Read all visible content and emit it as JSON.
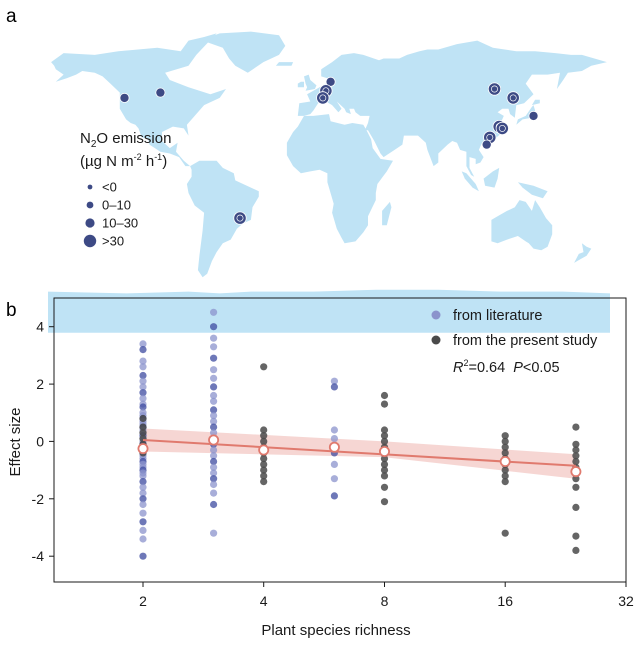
{
  "colors": {
    "ocean": "#ffffff",
    "land": "#bfe3f5",
    "site": "#3d4a85",
    "site_stroke": "#ffffff",
    "literature": "#8b93cc",
    "literature_dark": "#3d4ba0",
    "present_study": "#4a4a4a",
    "fit_line": "#e07a6e",
    "ci_band": "#f4cfcb",
    "mean_marker": "#e07a6e"
  },
  "panel_a": {
    "letter": "a",
    "legend": {
      "title_prefix": "N",
      "title_sub": "2",
      "title_rest": "O emission",
      "unit_prefix": "(µg N m",
      "unit_exp1": "-2",
      "unit_mid": " h",
      "unit_exp2": "-1",
      "unit_suffix": ")",
      "items": [
        {
          "label": "<0",
          "size_rank": 1
        },
        {
          "label": "0–10",
          "size_rank": 2
        },
        {
          "label": "10–30",
          "size_rank": 3
        },
        {
          "label": ">30",
          "size_rank": 4
        }
      ]
    },
    "sites": [
      {
        "name": "north-america-west",
        "lon": -121,
        "lat": 46,
        "size_rank": 3
      },
      {
        "name": "north-america-central",
        "lon": -98,
        "lat": 49,
        "size_rank": 3
      },
      {
        "name": "south-america-brazil",
        "lon": -47,
        "lat": -21,
        "size_rank": 4
      },
      {
        "name": "europe-north",
        "lon": 11,
        "lat": 55,
        "size_rank": 3
      },
      {
        "name": "europe-central-1",
        "lon": 8,
        "lat": 50,
        "size_rank": 4
      },
      {
        "name": "europe-central-2",
        "lon": 6,
        "lat": 46,
        "size_rank": 4
      },
      {
        "name": "china-north",
        "lon": 116,
        "lat": 51,
        "size_rank": 4
      },
      {
        "name": "northeast-asia",
        "lon": 128,
        "lat": 46,
        "size_rank": 4
      },
      {
        "name": "japan",
        "lon": 141,
        "lat": 36,
        "size_rank": 3
      },
      {
        "name": "china-east-1",
        "lon": 119,
        "lat": 30,
        "size_rank": 4
      },
      {
        "name": "china-east-2",
        "lon": 121,
        "lat": 29,
        "size_rank": 4
      },
      {
        "name": "china-south-1",
        "lon": 113,
        "lat": 24,
        "size_rank": 4
      },
      {
        "name": "china-south-2",
        "lon": 111,
        "lat": 20,
        "size_rank": 3
      }
    ]
  },
  "panel_b": {
    "letter": "b",
    "legend": {
      "literature_label": "from literature",
      "present_label": "from the present study",
      "stat_r": "R",
      "stat_r_exp": "2",
      "stat_r_value": "=0.64",
      "stat_p": "P",
      "stat_p_value": "<0.05"
    }
  },
  "chart_data": {
    "type": "scatter",
    "x_scale": "log2",
    "xlabel": "Plant species richness",
    "ylabel": "Effect size",
    "xlim": [
      1.2,
      32
    ],
    "ylim": [
      -4.9,
      5.0
    ],
    "x_ticks": [
      2,
      4,
      8,
      16,
      32
    ],
    "y_ticks": [
      4,
      2,
      0,
      -2,
      -4
    ],
    "grid": false,
    "legend_position": "top-right",
    "series": [
      {
        "name": "from literature",
        "points": {
          "2": [
            3.4,
            3.2,
            2.8,
            2.6,
            2.3,
            2.1,
            1.9,
            1.7,
            1.5,
            1.3,
            1.2,
            1.0,
            0.9,
            0.8,
            0.7,
            0.6,
            0.5,
            0.4,
            0.3,
            0.2,
            0.1,
            0.0,
            -0.1,
            -0.2,
            -0.3,
            -0.4,
            -0.5,
            -0.6,
            -0.7,
            -0.8,
            -0.9,
            -1.0,
            -1.1,
            -1.2,
            -1.4,
            -1.6,
            -1.8,
            -2.0,
            -2.2,
            -2.5,
            -2.8,
            -3.1,
            -3.4,
            -4.0
          ],
          "3": [
            4.5,
            4.0,
            3.6,
            3.3,
            2.9,
            2.5,
            2.2,
            1.9,
            1.6,
            1.4,
            1.1,
            0.9,
            0.7,
            0.5,
            0.3,
            0.1,
            -0.1,
            -0.3,
            -0.5,
            -0.7,
            -0.9,
            -1.1,
            -1.3,
            -1.5,
            -1.8,
            -2.2,
            -3.2
          ],
          "6": [
            2.1,
            1.9,
            0.4,
            0.1,
            -0.4,
            -0.8,
            -1.3,
            -1.9
          ]
        }
      },
      {
        "name": "from the present study",
        "points": {
          "2": [
            0.8,
            0.5,
            0.3,
            0.1,
            -0.1,
            -0.4
          ],
          "4": [
            2.6,
            0.4,
            0.2,
            0.0,
            -0.2,
            -0.4,
            -0.6,
            -0.8,
            -1.0,
            -1.2,
            -1.4
          ],
          "8": [
            1.6,
            1.3,
            0.4,
            0.2,
            0.0,
            -0.2,
            -0.4,
            -0.6,
            -0.8,
            -1.0,
            -1.2,
            -1.6,
            -2.1
          ],
          "16": [
            0.2,
            0.0,
            -0.2,
            -0.4,
            -0.6,
            -0.8,
            -1.0,
            -1.2,
            -1.4,
            -3.2
          ],
          "24": [
            0.5,
            -0.1,
            -0.3,
            -0.5,
            -0.7,
            -0.9,
            -1.1,
            -1.3,
            -1.6,
            -2.3,
            -3.3,
            -3.8
          ]
        }
      }
    ],
    "means": [
      {
        "x": 2,
        "y": -0.25
      },
      {
        "x": 3,
        "y": 0.05
      },
      {
        "x": 4,
        "y": -0.3
      },
      {
        "x": 6,
        "y": -0.2
      },
      {
        "x": 8,
        "y": -0.35
      },
      {
        "x": 16,
        "y": -0.7
      },
      {
        "x": 24,
        "y": -1.05
      }
    ],
    "fit": {
      "x": [
        2,
        24
      ],
      "y": [
        0.05,
        -0.85
      ]
    },
    "ci": {
      "x": [
        2,
        8,
        24
      ],
      "upper": [
        0.45,
        0.0,
        -0.45
      ],
      "lower": [
        -0.35,
        -0.55,
        -1.3
      ]
    }
  }
}
